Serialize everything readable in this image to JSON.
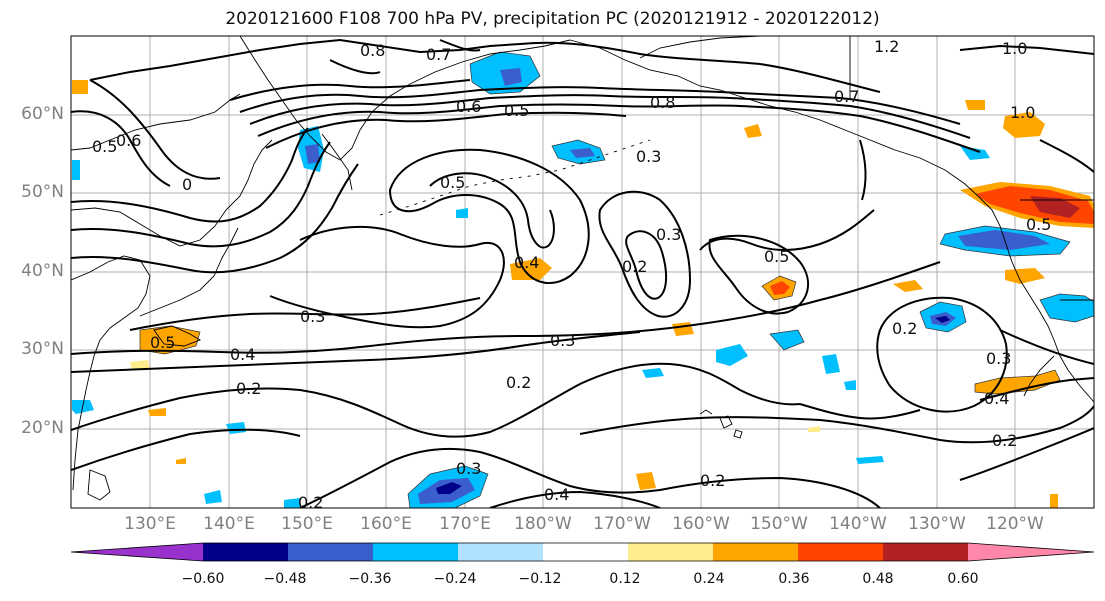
{
  "title": "2020121600 F108 700 hPa PV, precipitation PC (2020121912 - 2020122012)",
  "colors": {
    "contour": "#000000",
    "gridline": "#b0b0b0",
    "coastline": "#000000"
  },
  "map": {
    "region": "North Pacific",
    "lon_range": [
      122,
      -113
    ],
    "lat_range": [
      10,
      70
    ],
    "lat_ticks": [
      "20°N",
      "30°N",
      "40°N",
      "50°N",
      "60°N"
    ],
    "lon_ticks": [
      "130°E",
      "140°E",
      "150°E",
      "160°E",
      "170°E",
      "180°W",
      "170°W",
      "160°W",
      "150°W",
      "140°W",
      "130°W",
      "120°W"
    ],
    "pv_contour_labels": [
      "0.8",
      "0.7",
      "1.2",
      "1.0",
      "0.6",
      "0.5",
      "0.8",
      "0.7",
      "1.0",
      "0.5",
      "0.6",
      "0",
      "0.3",
      "0.5",
      "0.3",
      "0.2",
      "0.4",
      "0.5",
      "0.5",
      "0.3",
      "0.3",
      "0.2",
      "0.4",
      "0.2",
      "0.3",
      "0.4",
      "0.2",
      "0.2",
      "0.3",
      "0.4",
      "0.2",
      "0.2",
      "0.5"
    ]
  },
  "colorbar": {
    "colors": [
      "#9932cc",
      "#00008b",
      "#3a5fcd",
      "#00bfff",
      "#b0e2ff",
      "#ffffff",
      "#ffec8b",
      "#ffa500",
      "#ff4500",
      "#b22222",
      "#ff88aa"
    ],
    "tick_labels": [
      "−0.60",
      "−0.48",
      "−0.36",
      "−0.24",
      "−0.12",
      "0.12",
      "0.24",
      "0.36",
      "0.48",
      "0.60"
    ],
    "extend": "both"
  }
}
